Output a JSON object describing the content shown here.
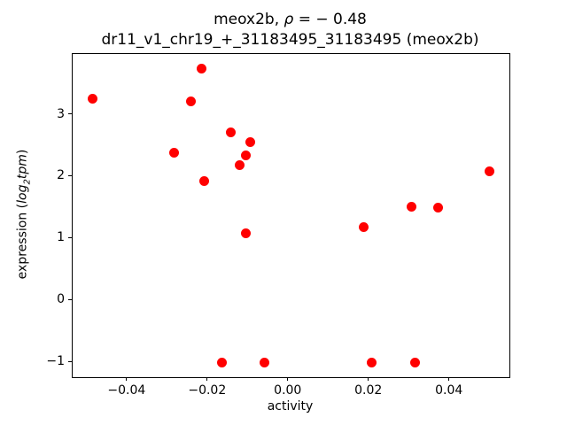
{
  "chart_data": {
    "type": "scatter",
    "title": {
      "prefix": "meox2b, ",
      "rho": "ρ",
      "rest": " = − 0.48"
    },
    "subtitle": "dr11_v1_chr19_+_31183495_31183495 (meox2b)",
    "xlabel": "activity",
    "ylabel_parts": {
      "prefix": "expression (",
      "math1": "log",
      "sub": "2",
      "math2": "tpm",
      "suffix": ")"
    },
    "rho": -0.48,
    "marker_color": "#ff0000",
    "grid": false,
    "legend": null,
    "xlim": [
      -0.0536,
      0.0548
    ],
    "ylim": [
      -1.24,
      3.98
    ],
    "xticks": {
      "values": [
        -0.04,
        -0.02,
        0.0,
        0.02,
        0.04
      ],
      "labels": [
        "−0.04",
        "−0.02",
        "0.00",
        "0.02",
        "0.04"
      ]
    },
    "yticks": {
      "values": [
        -1,
        0,
        1,
        2,
        3
      ],
      "labels": [
        "−1",
        "0",
        "1",
        "2",
        "3"
      ]
    },
    "points": [
      {
        "x": -0.0487,
        "y": 3.26
      },
      {
        "x": -0.0242,
        "y": 3.22
      },
      {
        "x": -0.0215,
        "y": 3.74
      },
      {
        "x": -0.0284,
        "y": 2.39
      },
      {
        "x": -0.0144,
        "y": 2.71
      },
      {
        "x": -0.0095,
        "y": 2.56
      },
      {
        "x": -0.0106,
        "y": 2.34
      },
      {
        "x": -0.0121,
        "y": 2.19
      },
      {
        "x": -0.0209,
        "y": 1.93
      },
      {
        "x": -0.0106,
        "y": 1.09
      },
      {
        "x": 0.0187,
        "y": 1.18
      },
      {
        "x": 0.0304,
        "y": 1.52
      },
      {
        "x": 0.0372,
        "y": 1.5
      },
      {
        "x": 0.0499,
        "y": 2.09
      },
      {
        "x": -0.0165,
        "y": -1.01
      },
      {
        "x": -0.006,
        "y": -1.01
      },
      {
        "x": 0.0207,
        "y": -1.01
      },
      {
        "x": 0.0313,
        "y": -1.01
      }
    ]
  }
}
